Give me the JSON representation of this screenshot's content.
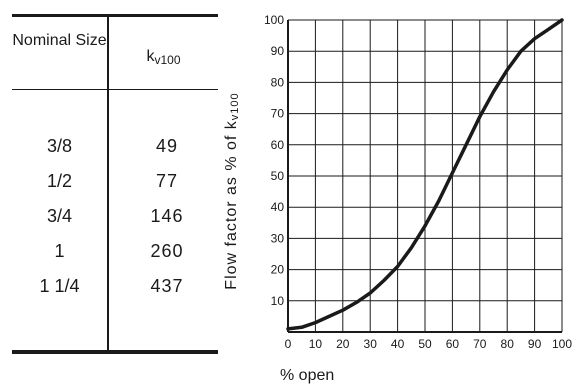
{
  "table": {
    "header_size": "Nominal Size",
    "header_kv_main": "k",
    "header_kv_sub": "v100",
    "rows": [
      {
        "size": "3/8",
        "value": "49"
      },
      {
        "size": "1/2",
        "value": "77"
      },
      {
        "size": "3/4",
        "value": "146"
      },
      {
        "size": "1",
        "value": "260"
      },
      {
        "size": "1 1/4",
        "value": "437"
      }
    ]
  },
  "chart_data": {
    "type": "line",
    "title": "",
    "xlabel": "% open",
    "ylabel_main": "Flow factor as % of k",
    "ylabel_sub": "v100",
    "xlim": [
      0,
      100
    ],
    "ylim": [
      0,
      100
    ],
    "grid": true,
    "xticks": [
      0,
      10,
      20,
      30,
      40,
      50,
      60,
      70,
      80,
      90,
      100
    ],
    "yticks": [
      10,
      20,
      30,
      40,
      50,
      60,
      70,
      80,
      90,
      100
    ],
    "x": [
      0,
      5,
      10,
      15,
      20,
      25,
      30,
      35,
      40,
      45,
      50,
      55,
      60,
      65,
      70,
      75,
      80,
      85,
      90,
      95,
      100
    ],
    "y": [
      1,
      1.5,
      3,
      5,
      7,
      9.5,
      12.5,
      16.5,
      21,
      27,
      34,
      42,
      51,
      60,
      69,
      77,
      84,
      90,
      94,
      97,
      100
    ],
    "line_color": "#1a1a1a"
  }
}
